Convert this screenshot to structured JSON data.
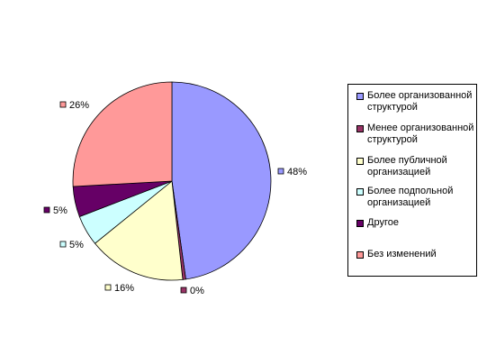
{
  "chart_data": {
    "type": "pie",
    "title": "",
    "slices": [
      {
        "label": "Более организованной структурой",
        "value": 48,
        "display": "48%",
        "color": "#9999ff"
      },
      {
        "label": "Менее организованной структурой",
        "value": 0.5,
        "display": "0%",
        "color": "#993366"
      },
      {
        "label": "Более публичной организацией",
        "value": 16,
        "display": "16%",
        "color": "#ffffcc"
      },
      {
        "label": "Более подпольной организацией",
        "value": 5,
        "display": "5%",
        "color": "#ccffff"
      },
      {
        "label": "Другое",
        "value": 5,
        "display": "5%",
        "color": "#660066"
      },
      {
        "label": "Без изменений",
        "value": 26,
        "display": "26%",
        "color": "#ff9999"
      }
    ],
    "legend_position": "right"
  }
}
